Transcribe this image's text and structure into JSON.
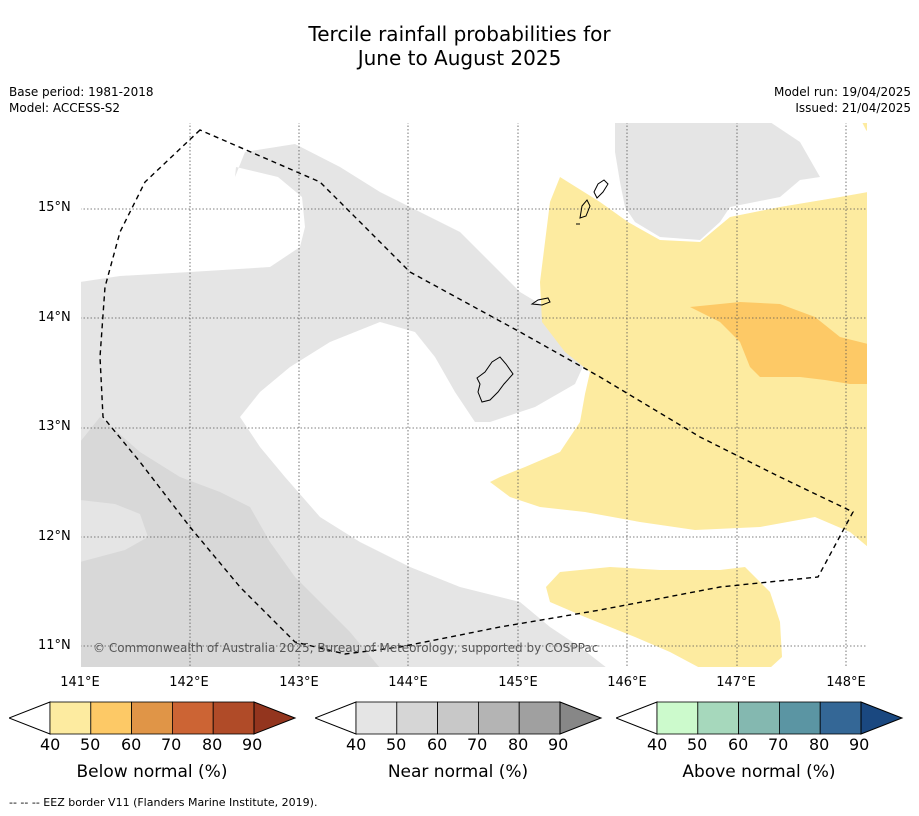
{
  "title_line1": "Tercile rainfall probabilities for",
  "title_line2": "June to August 2025",
  "base_period": "Base period: 1981-2018",
  "model": "Model: ACCESS-S2",
  "model_run": "Model run: 19/04/2025",
  "issued": "Issued: 21/04/2025",
  "lat_labels": [
    "15°N",
    "14°N",
    "13°N",
    "12°N",
    "11°N"
  ],
  "lon_labels": [
    "141°E",
    "142°E",
    "143°E",
    "144°E",
    "145°E",
    "146°E",
    "147°E",
    "148°E"
  ],
  "copyright": "© Commonwealth of Australia 2025, Bureau of Meteorology, supported by COSPPac",
  "colorbars": [
    {
      "title": "Below normal (%)",
      "ticks": [
        "40",
        "50",
        "60",
        "70",
        "80",
        "90"
      ],
      "colors": [
        "#fdeba0",
        "#fdc966",
        "#e09547",
        "#cc6434",
        "#b04b28",
        "#93351e"
      ]
    },
    {
      "title": "Near normal (%)",
      "ticks": [
        "40",
        "50",
        "60",
        "70",
        "80",
        "90"
      ],
      "colors": [
        "#e5e5e5",
        "#d6d6d6",
        "#c8c8c8",
        "#b4b4b4",
        "#a0a0a0",
        "#878787"
      ]
    },
    {
      "title": "Above normal (%)",
      "ticks": [
        "40",
        "50",
        "60",
        "70",
        "80",
        "90"
      ],
      "colors": [
        "#ccfacc",
        "#a6d8bc",
        "#84b8b0",
        "#5b95a3",
        "#346796",
        "#1a4880"
      ]
    }
  ],
  "footnote": "--  --  -- EEZ border V11 (Flanders Marine Institute, 2019)."
}
